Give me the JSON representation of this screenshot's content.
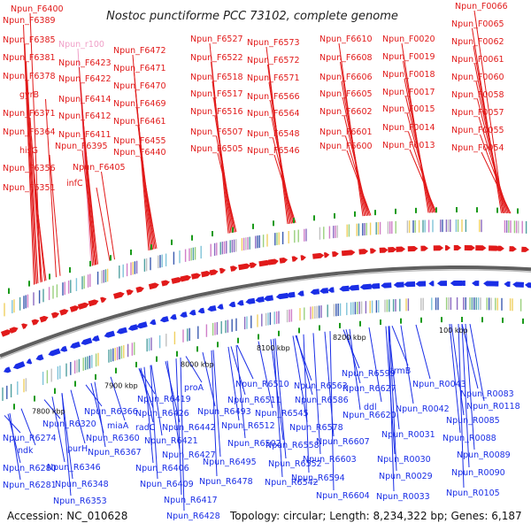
{
  "title": "Nostoc punctiforme PCC 73102, complete genome",
  "accession": "Accession: NC_010628",
  "topology": "Topology: circular; Length: 8,234,322 bp; Genes: 6,187",
  "colors": {
    "forward": "#e11a1a",
    "reverse": "#1a2ee6",
    "rrna": "#f0a0c8",
    "backbone": "#888888",
    "tick": "#1a9a1a"
  },
  "kbp_labels": [
    "7800 kbp",
    "7900 kbp",
    "8000 kbp",
    "8100 kbp",
    "8200 kbp",
    "100 kbp"
  ],
  "forward_genes": [
    "Npun_F6400",
    "Npun_F6389",
    "Npun_F6385",
    "Npun_F6381",
    "Npun_F6378",
    "gyrB",
    "Npun_F6371",
    "Npun_F6364",
    "hisG",
    "Npun_F6356",
    "Npun_F6351",
    "Npun_r100",
    "Npun_F6423",
    "Npun_F6422",
    "Npun_F6414",
    "Npun_F6412",
    "Npun_F6411",
    "Npun_F6395",
    "Npun_F6405",
    "infC",
    "Npun_F6472",
    "Npun_F6471",
    "Npun_F6470",
    "Npun_F6469",
    "Npun_F6461",
    "Npun_F6455",
    "Npun_F6440",
    "Npun_F6527",
    "Npun_F6522",
    "Npun_F6518",
    "Npun_F6517",
    "Npun_F6516",
    "Npun_F6507",
    "Npun_F6505",
    "Npun_F6573",
    "Npun_F6572",
    "Npun_F6571",
    "Npun_F6566",
    "Npun_F6564",
    "Npun_F6548",
    "Npun_F6546",
    "Npun_F6610",
    "Npun_F6608",
    "Npun_F6606",
    "Npun_F6605",
    "Npun_F6602",
    "Npun_F6601",
    "Npun_F6600",
    "Npun_F0020",
    "Npun_F0019",
    "Npun_F0018",
    "Npun_F0017",
    "Npun_F0015",
    "Npun_F0014",
    "Npun_F0013",
    "Npun_F0066",
    "Npun_F0065",
    "Npun_F0062",
    "Npun_F0061",
    "Npun_F0060",
    "Npun_F0058",
    "Npun_F0057",
    "Npun_F0055",
    "Npun_F0054"
  ],
  "reverse_genes": [
    "Npun_R6274",
    "ndk",
    "Npun_R6280",
    "Npun_R6281",
    "Npun_R6320",
    "purH",
    "Npun_R6346",
    "Npun_R6348",
    "Npun_R6353",
    "Npun_R6366",
    "miaA",
    "Npun_R6360",
    "Npun_R6367",
    "Npun_R6419",
    "Npun_R6426",
    "radC",
    "Npun_R6421",
    "Npun_R6406",
    "Npun_R6409",
    "Npun_R6417",
    "Npun_R6428",
    "proA",
    "Npun_R6442",
    "Npun_R6427",
    "Npun_R6510",
    "Npun_R6511",
    "Npun_R6493",
    "Npun_R6512",
    "Npun_R6502",
    "Npun_R6495",
    "Npun_R6478",
    "Npun_R6563",
    "Npun_R6545",
    "Npun_R6558",
    "Npun_R6552",
    "Npun_R6542",
    "Npun_R6586",
    "Npun_R6578",
    "Npun_R6599",
    "Npun_R6627",
    "ddl",
    "Npun_R6620",
    "Npun_R6607",
    "Npun_R6603",
    "Npun_R6594",
    "Npun_R6604",
    "trmB",
    "Npun_R0043",
    "Npun_R0042",
    "Npun_R0031",
    "Npun_R0030",
    "Npun_R0029",
    "Npun_R0033",
    "Npun_R0083",
    "Npun_R0118",
    "Npun_R0085",
    "Npun_R0088",
    "Npun_R0089",
    "Npun_R0090",
    "Npun_R0105"
  ]
}
